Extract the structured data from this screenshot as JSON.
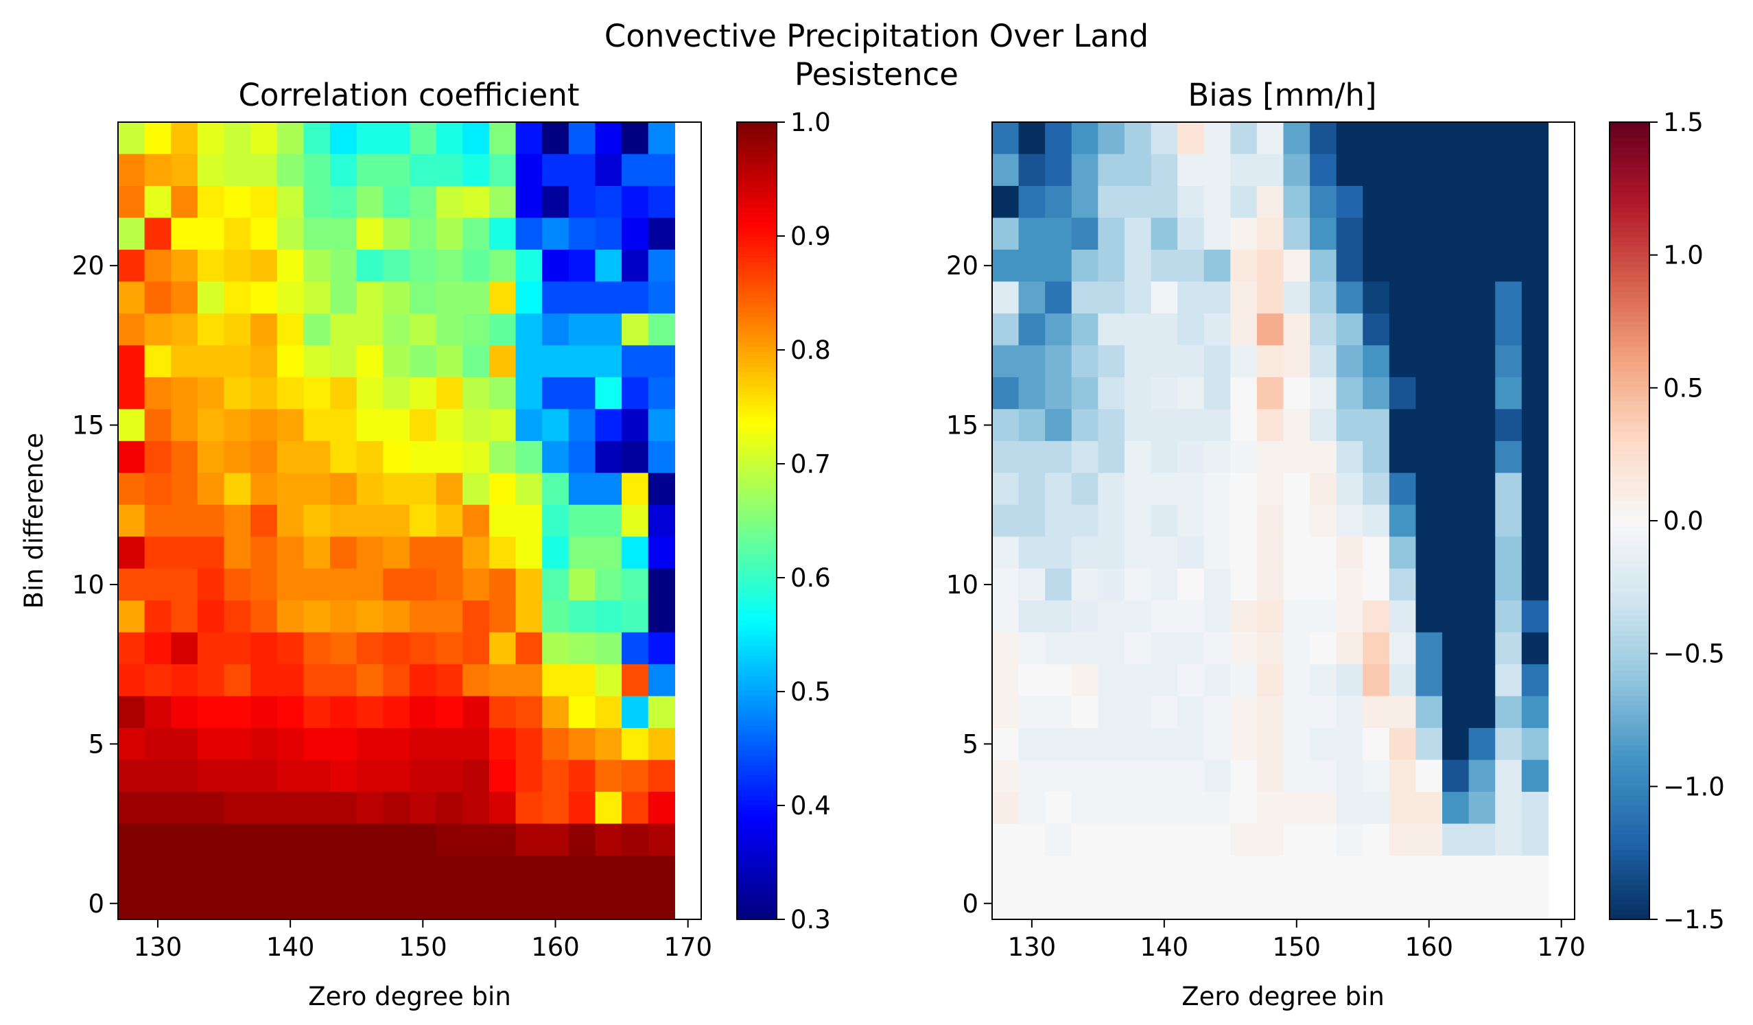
{
  "figure": {
    "suptitle_line1": "Convective Precipitation Over Land",
    "suptitle_line2": "Pesistence"
  },
  "chart_data": [
    {
      "type": "heatmap",
      "title": "Correlation coefficient",
      "xlabel": "Zero degree bin",
      "ylabel": "Bin difference",
      "x_first_center": 128,
      "x_step": 2,
      "y_first_center": 0,
      "y_step": 1,
      "xlim": [
        127,
        171
      ],
      "ylim": [
        -0.5,
        24.5
      ],
      "xticks": [
        130,
        140,
        150,
        160,
        170
      ],
      "yticks": [
        0,
        5,
        10,
        15,
        20
      ],
      "colormap": "jet",
      "vmin": 0.3,
      "vmax": 1.0,
      "colorbar_ticks": [
        "0.3",
        "0.4",
        "0.5",
        "0.6",
        "0.7",
        "0.8",
        "0.9",
        "1.0"
      ],
      "colorbar_tick_values": [
        0.3,
        0.4,
        0.5,
        0.6,
        0.7,
        0.8,
        0.9,
        1.0
      ],
      "rows_top_to_bottom": [
        [
          0.7,
          0.74,
          0.78,
          0.72,
          0.7,
          0.72,
          0.68,
          0.6,
          0.55,
          0.58,
          0.58,
          0.63,
          0.58,
          0.55,
          0.65,
          0.4,
          0.3,
          0.45,
          0.38,
          0.3,
          0.48
        ],
        [
          0.82,
          0.8,
          0.79,
          0.71,
          0.7,
          0.7,
          0.66,
          0.63,
          0.59,
          0.63,
          0.63,
          0.6,
          0.6,
          0.58,
          0.62,
          0.38,
          0.42,
          0.42,
          0.36,
          0.45,
          0.45
        ],
        [
          0.83,
          0.72,
          0.82,
          0.75,
          0.74,
          0.75,
          0.7,
          0.63,
          0.62,
          0.66,
          0.62,
          0.64,
          0.7,
          0.71,
          0.67,
          0.38,
          0.32,
          0.42,
          0.43,
          0.4,
          0.42
        ],
        [
          0.69,
          0.88,
          0.74,
          0.74,
          0.76,
          0.74,
          0.69,
          0.65,
          0.65,
          0.72,
          0.68,
          0.65,
          0.68,
          0.64,
          0.58,
          0.45,
          0.48,
          0.45,
          0.44,
          0.38,
          0.32
        ],
        [
          0.88,
          0.82,
          0.8,
          0.76,
          0.77,
          0.78,
          0.73,
          0.68,
          0.66,
          0.6,
          0.62,
          0.64,
          0.65,
          0.63,
          0.65,
          0.58,
          0.38,
          0.4,
          0.52,
          0.35,
          0.47
        ],
        [
          0.8,
          0.84,
          0.82,
          0.71,
          0.75,
          0.74,
          0.72,
          0.7,
          0.66,
          0.7,
          0.68,
          0.65,
          0.66,
          0.66,
          0.76,
          0.56,
          0.44,
          0.44,
          0.44,
          0.44,
          0.46
        ],
        [
          0.82,
          0.8,
          0.79,
          0.76,
          0.77,
          0.8,
          0.75,
          0.66,
          0.7,
          0.7,
          0.67,
          0.69,
          0.66,
          0.65,
          0.63,
          0.52,
          0.48,
          0.5,
          0.5,
          0.7,
          0.64
        ],
        [
          0.9,
          0.75,
          0.78,
          0.78,
          0.78,
          0.79,
          0.74,
          0.71,
          0.7,
          0.73,
          0.68,
          0.66,
          0.68,
          0.64,
          0.78,
          0.52,
          0.52,
          0.52,
          0.52,
          0.45,
          0.45
        ],
        [
          0.9,
          0.82,
          0.81,
          0.8,
          0.77,
          0.78,
          0.76,
          0.75,
          0.77,
          0.72,
          0.7,
          0.72,
          0.76,
          0.69,
          0.67,
          0.52,
          0.44,
          0.44,
          0.57,
          0.42,
          0.46
        ],
        [
          0.72,
          0.84,
          0.81,
          0.79,
          0.8,
          0.81,
          0.8,
          0.76,
          0.76,
          0.73,
          0.73,
          0.76,
          0.72,
          0.7,
          0.71,
          0.5,
          0.52,
          0.47,
          0.41,
          0.35,
          0.49
        ],
        [
          0.92,
          0.86,
          0.84,
          0.8,
          0.81,
          0.82,
          0.79,
          0.79,
          0.76,
          0.77,
          0.74,
          0.73,
          0.73,
          0.72,
          0.67,
          0.64,
          0.49,
          0.46,
          0.34,
          0.32,
          0.47
        ],
        [
          0.84,
          0.85,
          0.84,
          0.81,
          0.77,
          0.81,
          0.8,
          0.8,
          0.81,
          0.78,
          0.77,
          0.77,
          0.8,
          0.7,
          0.74,
          0.7,
          0.62,
          0.48,
          0.48,
          0.75,
          0.31
        ],
        [
          0.8,
          0.84,
          0.84,
          0.84,
          0.82,
          0.86,
          0.8,
          0.78,
          0.79,
          0.79,
          0.79,
          0.76,
          0.78,
          0.82,
          0.73,
          0.73,
          0.6,
          0.63,
          0.63,
          0.72,
          0.36
        ],
        [
          0.94,
          0.87,
          0.87,
          0.87,
          0.82,
          0.84,
          0.82,
          0.8,
          0.84,
          0.82,
          0.81,
          0.84,
          0.84,
          0.8,
          0.76,
          0.73,
          0.58,
          0.65,
          0.65,
          0.55,
          0.38
        ],
        [
          0.86,
          0.86,
          0.86,
          0.88,
          0.85,
          0.84,
          0.82,
          0.82,
          0.82,
          0.82,
          0.85,
          0.85,
          0.84,
          0.82,
          0.84,
          0.78,
          0.62,
          0.68,
          0.64,
          0.62,
          0.3
        ],
        [
          0.8,
          0.88,
          0.86,
          0.89,
          0.87,
          0.85,
          0.81,
          0.8,
          0.81,
          0.8,
          0.81,
          0.83,
          0.83,
          0.86,
          0.84,
          0.78,
          0.63,
          0.61,
          0.6,
          0.61,
          0.3
        ],
        [
          0.88,
          0.9,
          0.94,
          0.88,
          0.88,
          0.89,
          0.88,
          0.85,
          0.84,
          0.86,
          0.87,
          0.86,
          0.85,
          0.86,
          0.78,
          0.86,
          0.68,
          0.67,
          0.66,
          0.44,
          0.4
        ],
        [
          0.89,
          0.88,
          0.89,
          0.88,
          0.86,
          0.89,
          0.89,
          0.86,
          0.86,
          0.84,
          0.86,
          0.89,
          0.88,
          0.83,
          0.82,
          0.82,
          0.75,
          0.75,
          0.71,
          0.86,
          0.48
        ],
        [
          0.97,
          0.94,
          0.92,
          0.91,
          0.91,
          0.92,
          0.91,
          0.89,
          0.9,
          0.89,
          0.9,
          0.92,
          0.91,
          0.93,
          0.87,
          0.86,
          0.8,
          0.74,
          0.76,
          0.53,
          0.7
        ],
        [
          0.94,
          0.95,
          0.95,
          0.93,
          0.93,
          0.94,
          0.93,
          0.92,
          0.92,
          0.93,
          0.93,
          0.94,
          0.94,
          0.94,
          0.9,
          0.88,
          0.84,
          0.82,
          0.8,
          0.75,
          0.78
        ],
        [
          0.96,
          0.96,
          0.96,
          0.95,
          0.95,
          0.95,
          0.94,
          0.94,
          0.93,
          0.94,
          0.94,
          0.95,
          0.95,
          0.96,
          0.91,
          0.88,
          0.86,
          0.88,
          0.84,
          0.85,
          0.87
        ],
        [
          0.98,
          0.98,
          0.98,
          0.98,
          0.97,
          0.97,
          0.97,
          0.97,
          0.97,
          0.96,
          0.97,
          0.96,
          0.97,
          0.96,
          0.94,
          0.87,
          0.86,
          0.89,
          0.75,
          0.87,
          0.92
        ],
        [
          1.0,
          1.0,
          1.0,
          1.0,
          1.0,
          1.0,
          1.0,
          1.0,
          1.0,
          1.0,
          1.0,
          1.0,
          0.99,
          0.99,
          0.99,
          0.97,
          0.97,
          0.99,
          0.97,
          0.98,
          0.97
        ],
        [
          1.0,
          1.0,
          1.0,
          1.0,
          1.0,
          1.0,
          1.0,
          1.0,
          1.0,
          1.0,
          1.0,
          1.0,
          1.0,
          1.0,
          1.0,
          1.0,
          1.0,
          1.0,
          1.0,
          1.0,
          1.0
        ],
        [
          1.0,
          1.0,
          1.0,
          1.0,
          1.0,
          1.0,
          1.0,
          1.0,
          1.0,
          1.0,
          1.0,
          1.0,
          1.0,
          1.0,
          1.0,
          1.0,
          1.0,
          1.0,
          1.0,
          1.0,
          1.0
        ]
      ]
    },
    {
      "type": "heatmap",
      "title": "Bias [mm/h]",
      "xlabel": "Zero degree bin",
      "ylabel": "",
      "x_first_center": 128,
      "x_step": 2,
      "y_first_center": 0,
      "y_step": 1,
      "xlim": [
        127,
        171
      ],
      "ylim": [
        -0.5,
        24.5
      ],
      "xticks": [
        130,
        140,
        150,
        160,
        170
      ],
      "yticks": [
        0,
        5,
        10,
        15,
        20
      ],
      "colormap": "RdBu_r",
      "vmin": -1.5,
      "vmax": 1.5,
      "colorbar_ticks": [
        "−1.5",
        "−1.0",
        "−0.5",
        "0.0",
        "0.5",
        "1.0",
        "1.5"
      ],
      "colorbar_tick_values": [
        -1.5,
        -1.0,
        -0.5,
        0.0,
        0.5,
        1.0,
        1.5
      ],
      "rows_top_to_bottom": [
        [
          -1.1,
          -1.5,
          -1.2,
          -0.9,
          -0.7,
          -0.5,
          -0.3,
          0.2,
          -0.1,
          -0.4,
          -0.1,
          -0.8,
          -1.3,
          -1.6,
          -1.6,
          -1.6,
          -1.6,
          -1.6,
          -1.6,
          -1.6,
          -1.6
        ],
        [
          -0.8,
          -1.3,
          -1.2,
          -0.8,
          -0.5,
          -0.5,
          -0.4,
          -0.1,
          -0.1,
          -0.2,
          -0.2,
          -0.7,
          -1.2,
          -1.5,
          -1.6,
          -1.6,
          -1.6,
          -1.6,
          -1.6,
          -1.5,
          -1.6
        ],
        [
          -1.6,
          -1.1,
          -1.0,
          -0.8,
          -0.4,
          -0.4,
          -0.4,
          -0.2,
          -0.1,
          -0.3,
          0.1,
          -0.6,
          -1.0,
          -1.2,
          -1.6,
          -1.6,
          -1.6,
          -1.6,
          -1.6,
          -1.6,
          -1.6
        ],
        [
          -0.6,
          -0.9,
          -0.9,
          -1.0,
          -0.5,
          -0.3,
          -0.6,
          -0.3,
          -0.1,
          0.05,
          0.15,
          -0.5,
          -0.9,
          -1.3,
          -1.6,
          -1.6,
          -1.6,
          -1.6,
          -1.6,
          -1.6,
          -1.6
        ],
        [
          -0.9,
          -0.9,
          -0.9,
          -0.6,
          -0.5,
          -0.3,
          -0.4,
          -0.4,
          -0.6,
          0.15,
          0.25,
          0.05,
          -0.6,
          -1.3,
          -1.5,
          -1.6,
          -1.6,
          -1.6,
          -1.6,
          -1.6,
          -1.6
        ],
        [
          -0.2,
          -0.8,
          -1.1,
          -0.4,
          -0.4,
          -0.3,
          -0.05,
          -0.3,
          -0.3,
          0.1,
          0.25,
          -0.2,
          -0.5,
          -1.0,
          -1.4,
          -1.6,
          -1.6,
          -1.6,
          -1.6,
          -1.1,
          -1.6
        ],
        [
          -0.5,
          -1.0,
          -0.8,
          -0.6,
          -0.2,
          -0.2,
          -0.2,
          -0.3,
          -0.2,
          0.1,
          0.55,
          0.1,
          -0.4,
          -0.6,
          -1.3,
          -1.6,
          -1.6,
          -1.6,
          -1.6,
          -1.1,
          -1.6
        ],
        [
          -0.8,
          -0.8,
          -0.7,
          -0.5,
          -0.4,
          -0.2,
          -0.2,
          -0.2,
          -0.3,
          -0.1,
          0.15,
          0.1,
          -0.3,
          -0.7,
          -0.9,
          -1.6,
          -1.6,
          -1.6,
          -1.6,
          -1.0,
          -1.6
        ],
        [
          -1.0,
          -0.8,
          -0.7,
          -0.6,
          -0.3,
          -0.2,
          -0.15,
          -0.1,
          -0.3,
          0.0,
          0.4,
          0.0,
          -0.1,
          -0.6,
          -0.8,
          -1.3,
          -1.6,
          -1.6,
          -1.6,
          -0.9,
          -1.6
        ],
        [
          -0.5,
          -0.6,
          -0.8,
          -0.5,
          -0.4,
          -0.2,
          -0.2,
          -0.2,
          -0.2,
          0.0,
          0.2,
          0.05,
          -0.2,
          -0.5,
          -0.5,
          -1.5,
          -1.6,
          -1.6,
          -1.6,
          -1.3,
          -1.6
        ],
        [
          -0.4,
          -0.4,
          -0.4,
          -0.3,
          -0.4,
          -0.1,
          -0.2,
          -0.15,
          -0.1,
          -0.05,
          0.05,
          0.05,
          0.05,
          -0.3,
          -0.5,
          -1.5,
          -1.6,
          -1.6,
          -1.6,
          -1.0,
          -1.6
        ],
        [
          -0.3,
          -0.4,
          -0.3,
          -0.4,
          -0.2,
          -0.1,
          -0.1,
          -0.1,
          -0.05,
          0.0,
          0.05,
          0.0,
          0.1,
          -0.2,
          -0.4,
          -1.1,
          -1.6,
          -1.6,
          -1.6,
          -0.5,
          -1.6
        ],
        [
          -0.4,
          -0.4,
          -0.3,
          -0.3,
          -0.2,
          -0.1,
          -0.2,
          -0.1,
          -0.05,
          0.0,
          0.1,
          0.0,
          0.05,
          -0.1,
          -0.2,
          -0.9,
          -1.6,
          -1.6,
          -1.6,
          -0.5,
          -1.6
        ],
        [
          -0.1,
          -0.3,
          -0.3,
          -0.2,
          -0.2,
          -0.1,
          -0.1,
          -0.15,
          -0.05,
          0.0,
          0.1,
          0.0,
          0.0,
          0.1,
          0.0,
          -0.6,
          -1.6,
          -1.6,
          -1.6,
          -0.6,
          -1.6
        ],
        [
          -0.05,
          -0.1,
          -0.4,
          -0.1,
          -0.15,
          -0.05,
          -0.1,
          0.0,
          -0.1,
          0.0,
          0.1,
          0.0,
          0.0,
          0.05,
          0.0,
          -0.4,
          -1.6,
          -1.6,
          -1.6,
          -0.6,
          -1.6
        ],
        [
          -0.05,
          -0.2,
          -0.2,
          -0.15,
          -0.1,
          -0.1,
          -0.05,
          -0.05,
          -0.1,
          0.1,
          0.15,
          -0.05,
          -0.05,
          0.05,
          0.2,
          -0.2,
          -1.6,
          -1.6,
          -1.5,
          -0.5,
          -1.2
        ],
        [
          0.05,
          -0.05,
          -0.1,
          -0.1,
          -0.1,
          -0.05,
          -0.1,
          -0.1,
          -0.05,
          0.05,
          0.1,
          -0.05,
          0.0,
          0.1,
          0.35,
          -0.1,
          -1.0,
          -1.6,
          -1.5,
          -0.4,
          -1.6
        ],
        [
          0.05,
          0.0,
          0.0,
          0.05,
          -0.1,
          -0.1,
          -0.1,
          -0.05,
          -0.1,
          -0.05,
          0.15,
          -0.05,
          -0.1,
          -0.2,
          0.4,
          -0.2,
          -1.0,
          -1.6,
          -1.6,
          -0.3,
          -1.1
        ],
        [
          0.05,
          -0.05,
          -0.05,
          0.0,
          -0.1,
          -0.1,
          -0.05,
          -0.1,
          -0.05,
          0.05,
          0.1,
          -0.05,
          -0.05,
          -0.1,
          0.1,
          0.1,
          -0.6,
          -1.6,
          -1.5,
          -0.6,
          -0.9
        ],
        [
          0.0,
          -0.1,
          -0.1,
          -0.1,
          -0.1,
          -0.1,
          -0.1,
          -0.1,
          -0.05,
          0.05,
          0.1,
          -0.05,
          -0.1,
          -0.1,
          0.0,
          0.25,
          -0.4,
          -1.6,
          -1.1,
          -0.4,
          -0.6
        ],
        [
          0.05,
          -0.05,
          -0.05,
          -0.05,
          -0.05,
          -0.05,
          -0.05,
          -0.05,
          -0.1,
          0.0,
          0.1,
          -0.05,
          -0.05,
          -0.1,
          -0.05,
          0.15,
          0.0,
          -1.3,
          -0.8,
          -0.2,
          -0.9
        ],
        [
          0.1,
          -0.05,
          0.0,
          -0.05,
          -0.05,
          -0.05,
          -0.05,
          -0.05,
          -0.05,
          0.0,
          0.05,
          0.05,
          0.05,
          -0.1,
          -0.1,
          0.15,
          0.15,
          -0.9,
          -0.7,
          -0.2,
          -0.3
        ],
        [
          0.0,
          0.0,
          -0.05,
          0.0,
          0.0,
          0.0,
          0.0,
          0.0,
          0.0,
          0.05,
          0.05,
          0.0,
          0.0,
          -0.05,
          0.0,
          0.1,
          0.1,
          -0.3,
          -0.3,
          -0.2,
          -0.3
        ],
        [
          0.0,
          0.0,
          0.0,
          0.0,
          0.0,
          0.0,
          0.0,
          0.0,
          0.0,
          0.0,
          0.0,
          0.0,
          0.0,
          0.0,
          0.0,
          0.0,
          0.0,
          0.0,
          0.0,
          0.0,
          0.0
        ],
        [
          0.0,
          0.0,
          0.0,
          0.0,
          0.0,
          0.0,
          0.0,
          0.0,
          0.0,
          0.0,
          0.0,
          0.0,
          0.0,
          0.0,
          0.0,
          0.0,
          0.0,
          0.0,
          0.0,
          0.0,
          0.0
        ]
      ]
    }
  ]
}
